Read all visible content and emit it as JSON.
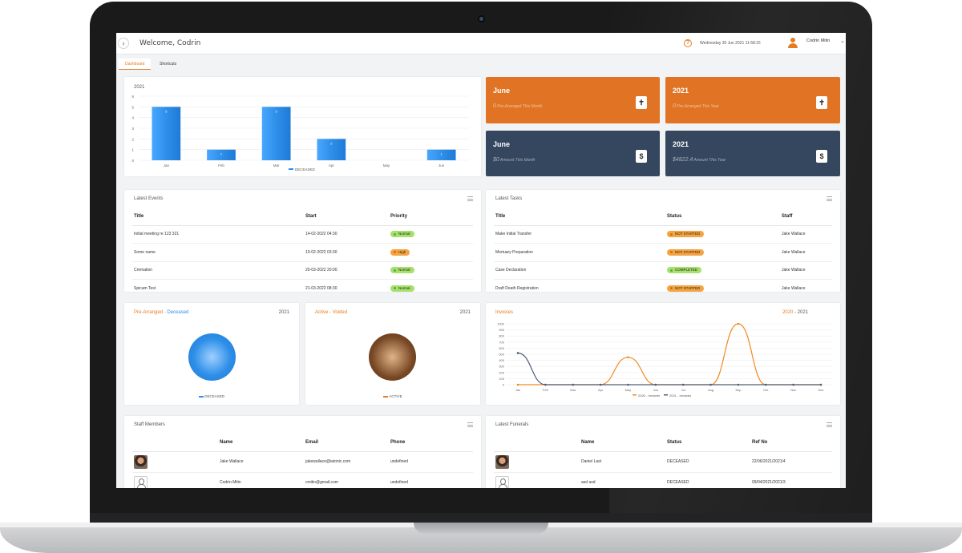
{
  "header": {
    "welcome": "Welcome, Codrin",
    "datetime": "Wednesday 30 Jun 2021    11:58:15",
    "user": "Codrin Mitin"
  },
  "tabs": [
    {
      "label": "Dashboard",
      "active": true
    },
    {
      "label": "Shortcuts",
      "active": false
    }
  ],
  "bar_chart": {
    "year_label": "2021",
    "legend": "DECEASED"
  },
  "tiles": [
    {
      "title": "June",
      "amount": "0",
      "caption": "Pre-Arranged This Month",
      "color": "#e07424",
      "icon": "cross-icon"
    },
    {
      "title": "2021",
      "amount": "0",
      "caption": "Pre-Arranged This Year",
      "color": "#e07424",
      "icon": "cross-icon"
    },
    {
      "title": "June",
      "amount": "$0",
      "caption": "Amount This Month",
      "color": "#34475e",
      "icon": "invoice-icon"
    },
    {
      "title": "2021",
      "amount": "$4822.4",
      "caption": "Amount This Year",
      "color": "#34475e",
      "icon": "invoice-icon"
    }
  ],
  "events": {
    "title": "Latest Events",
    "columns": [
      "Title",
      "Start",
      "Priority"
    ],
    "rows": [
      {
        "title": "Initial meeting re 123 321",
        "start": "14-02-2022 04:30",
        "priority": "Normal"
      },
      {
        "title": "Some name",
        "start": "10-02-2022 03:30",
        "priority": "High"
      },
      {
        "title": "Cremation",
        "start": "20-03-2022 20:00",
        "priority": "Normal"
      },
      {
        "title": "Spicam Test",
        "start": "21-03-2022 08:30",
        "priority": "Normal"
      }
    ]
  },
  "tasks": {
    "title": "Latest Tasks",
    "columns": [
      "Title",
      "Status",
      "Staff"
    ],
    "rows": [
      {
        "title": "Make Initial Transfer",
        "status": "NOT STARTED",
        "staff": "Jake Wallace"
      },
      {
        "title": "Mortuary Preparation",
        "status": "NOT STARTED",
        "staff": "Jake Wallace"
      },
      {
        "title": "Case Declaration",
        "status": "COMPLETED",
        "staff": "Jake Wallace"
      },
      {
        "title": "Draft Death Registration",
        "status": "NOT STARTED",
        "staff": "Jake Wallace"
      }
    ]
  },
  "pie1": {
    "title_a": "Pre-Arranged",
    "sep": " - ",
    "title_b": "Deceased",
    "year": "2021",
    "legend": "DECEASED",
    "color": "#2e8fe8"
  },
  "pie2": {
    "title_a": "Active",
    "sep": " - ",
    "title_b": "Voided",
    "year": "2021",
    "legend": "ACTIVE",
    "color": "#7a4a26"
  },
  "invoices": {
    "title": "Invoices",
    "year_a": "2020",
    "sep": " - ",
    "year_b": "2021",
    "legend_a": "2020 - Invoices",
    "legend_b": "2021 - Invoices"
  },
  "staff": {
    "title": "Staff Members",
    "columns": [
      "",
      "Name",
      "Email",
      "Phone"
    ],
    "rows": [
      {
        "avatar": "photo",
        "name": "Jake Wallace",
        "email": "jakewallace@iatonic.com",
        "phone": "undefined"
      },
      {
        "avatar": "blank",
        "name": "Codrin Mitin",
        "email": "cmitin@gmail.com",
        "phone": "undefined"
      }
    ]
  },
  "funerals": {
    "title": "Latest Funerals",
    "columns": [
      "",
      "Name",
      "Status",
      "Ref No"
    ],
    "rows": [
      {
        "avatar": "photo",
        "name": "Daniel Last",
        "status": "DECEASED",
        "ref": "22/06/2021/2021/4"
      },
      {
        "avatar": "blank",
        "name": "asd asd",
        "status": "DECEASED",
        "ref": "09/04/2021/2021/3"
      }
    ]
  },
  "chart_data": [
    {
      "type": "bar",
      "title": "2021",
      "categories": [
        "Jan",
        "Feb",
        "Mar",
        "Apr",
        "May",
        "Jun"
      ],
      "series": [
        {
          "name": "DECEASED",
          "values": [
            5,
            1,
            5,
            2,
            0,
            1
          ]
        }
      ],
      "ylim": [
        0,
        6
      ],
      "yticks": [
        "0",
        "1",
        "2",
        "3",
        "4",
        "5",
        "6"
      ],
      "grid": true,
      "legend": "bottom",
      "color": "#2e8fe8"
    },
    {
      "type": "pie",
      "title": "Pre-Arranged - Deceased",
      "series": [
        {
          "name": "DECEASED",
          "values": [
            1
          ]
        }
      ],
      "color": "#2e8fe8"
    },
    {
      "type": "pie",
      "title": "Active - Voided",
      "series": [
        {
          "name": "ACTIVE",
          "values": [
            1
          ]
        }
      ],
      "color": "#7a4a26"
    },
    {
      "type": "line",
      "title": "Invoices",
      "categories": [
        "Jan",
        "Feb",
        "Mar",
        "Apr",
        "May",
        "Jun",
        "Jul",
        "Aug",
        "Sep",
        "Oct",
        "Nov",
        "Dec"
      ],
      "series": [
        {
          "name": "2020 - Invoices",
          "values": [
            0,
            0,
            0,
            0,
            450,
            0,
            0,
            0,
            1000,
            0,
            0,
            0
          ],
          "color": "#f08a24"
        },
        {
          "name": "2021 - Invoices",
          "values": [
            520,
            0,
            0,
            0,
            0,
            0,
            0,
            0,
            0,
            0,
            0,
            0
          ],
          "color": "#4e5f78"
        }
      ],
      "ylim": [
        0,
        1000
      ],
      "yticks": [
        "0",
        "100",
        "200",
        "300",
        "400",
        "500",
        "600",
        "700",
        "800",
        "900",
        "1000"
      ],
      "grid": true,
      "legend": "bottom"
    }
  ]
}
